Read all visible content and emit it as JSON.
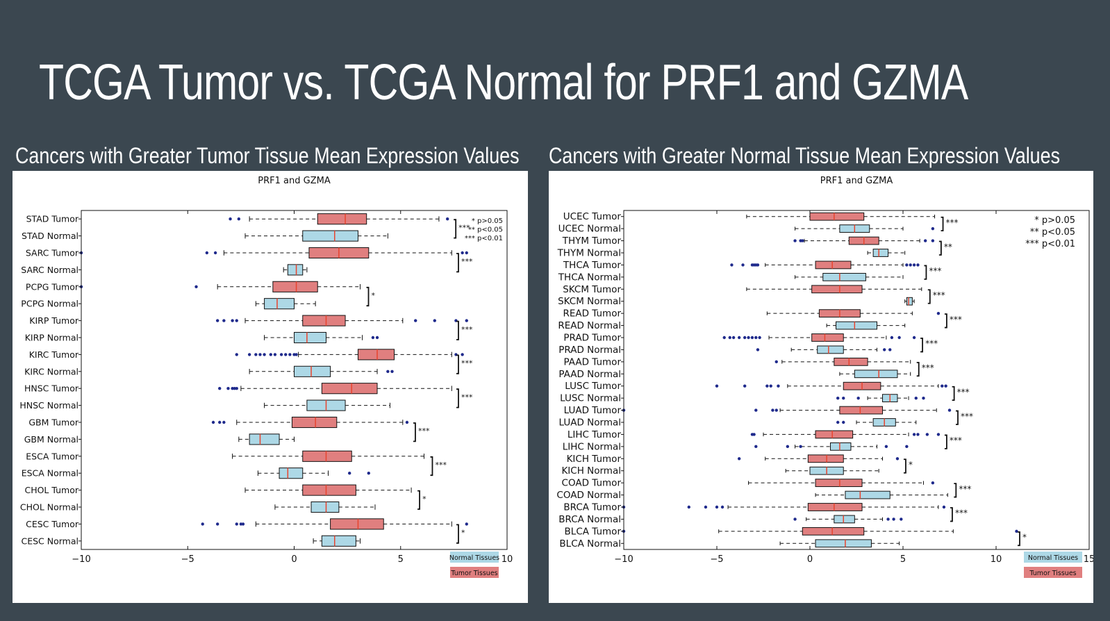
{
  "slide": {
    "title": "TCGA Tumor vs. TCGA Normal for PRF1 and GZMA",
    "left_heading": "Cancers with Greater Tumor Tissue Mean Expression Values",
    "right_heading": "Cancers with Greater Normal Tissue Mean Expression Values"
  },
  "colors": {
    "background": "#3b4750",
    "normal_box": "#add8e6",
    "tumor_box": "#e07f7f",
    "median": "#e8442e",
    "outlier": "#1f2a8c"
  },
  "chart_data": [
    {
      "type": "boxplot",
      "orientation": "horizontal",
      "title": "PRF1 and GZMA",
      "xlim": [
        -10,
        10
      ],
      "xticks": [
        -10,
        -5,
        0,
        5,
        10
      ],
      "grid": false,
      "legend": {
        "placement": "bottom-right",
        "entries": [
          "Normal Tissues",
          "Tumor Tissues"
        ]
      },
      "significance_legend": [
        "* p>0.05",
        "** p<0.05",
        "*** p<0.01"
      ],
      "categories": [
        {
          "label": "STAD Tumor",
          "type": "tumor",
          "whislo": -2.1,
          "q1": 1.1,
          "med": 2.4,
          "q3": 3.4,
          "whishi": 6.8,
          "fliers": [
            -3.0,
            -2.6,
            7.2
          ]
        },
        {
          "label": "STAD Normal",
          "type": "normal",
          "whislo": -2.3,
          "q1": 0.4,
          "med": 1.9,
          "q3": 3.0,
          "whishi": 4.4,
          "fliers": []
        },
        {
          "label": "SARC Tumor",
          "type": "tumor",
          "whislo": -3.3,
          "q1": 0.7,
          "med": 2.1,
          "q3": 3.5,
          "whishi": 7.4,
          "fliers": [
            -10.0,
            -4.1,
            -3.7,
            7.9,
            8.1
          ]
        },
        {
          "label": "SARC Normal",
          "type": "normal",
          "whislo": -0.5,
          "q1": -0.3,
          "med": 0.1,
          "q3": 0.4,
          "whishi": 0.6,
          "fliers": []
        },
        {
          "label": "PCPG Tumor",
          "type": "tumor",
          "whislo": -3.6,
          "q1": -1.0,
          "med": 0.1,
          "q3": 1.1,
          "whishi": 3.1,
          "fliers": [
            -10.0,
            -4.6
          ]
        },
        {
          "label": "PCPG Normal",
          "type": "normal",
          "whislo": -1.8,
          "q1": -1.4,
          "med": -0.8,
          "q3": 0.0,
          "whishi": 1.0,
          "fliers": []
        },
        {
          "label": "KIRP Tumor",
          "type": "tumor",
          "whislo": -2.3,
          "q1": 0.4,
          "med": 1.5,
          "q3": 2.4,
          "whishi": 5.1,
          "fliers": [
            -3.6,
            -3.3,
            -2.9,
            -2.7,
            5.7,
            6.6,
            7.6,
            8.1
          ]
        },
        {
          "label": "KIRP Normal",
          "type": "normal",
          "whislo": -1.4,
          "q1": 0.0,
          "med": 0.6,
          "q3": 1.5,
          "whishi": 3.2,
          "fliers": [
            3.7,
            3.9
          ]
        },
        {
          "label": "KIRC Tumor",
          "type": "tumor",
          "whislo": 0.2,
          "q1": 3.0,
          "med": 3.9,
          "q3": 4.7,
          "whishi": 7.4,
          "fliers": [
            -2.7,
            -2.1,
            -1.8,
            -1.6,
            -1.4,
            -1.1,
            -0.9,
            -0.6,
            -0.4,
            -0.2,
            0.0,
            0.1,
            7.6,
            7.9
          ]
        },
        {
          "label": "KIRC Normal",
          "type": "normal",
          "whislo": -2.1,
          "q1": 0.0,
          "med": 0.8,
          "q3": 1.7,
          "whishi": 3.9,
          "fliers": [
            4.4,
            4.6
          ]
        },
        {
          "label": "HNSC Tumor",
          "type": "tumor",
          "whislo": -2.5,
          "q1": 1.3,
          "med": 2.7,
          "q3": 3.9,
          "whishi": 7.4,
          "fliers": [
            -3.5,
            -3.1,
            -2.9,
            -2.8,
            -2.7
          ]
        },
        {
          "label": "HNSC Normal",
          "type": "normal",
          "whislo": -1.4,
          "q1": 0.6,
          "med": 1.5,
          "q3": 2.4,
          "whishi": 4.5,
          "fliers": []
        },
        {
          "label": "GBM Tumor",
          "type": "tumor",
          "whislo": -2.7,
          "q1": -0.1,
          "med": 1.0,
          "q3": 2.0,
          "whishi": 5.1,
          "fliers": [
            -3.8,
            -3.5,
            -3.3,
            5.3
          ]
        },
        {
          "label": "GBM Normal",
          "type": "normal",
          "whislo": -2.6,
          "q1": -2.1,
          "med": -1.6,
          "q3": -0.7,
          "whishi": 0.0,
          "fliers": []
        },
        {
          "label": "ESCA Tumor",
          "type": "tumor",
          "whislo": -2.9,
          "q1": 0.4,
          "med": 1.5,
          "q3": 2.7,
          "whishi": 6.1,
          "fliers": []
        },
        {
          "label": "ESCA Normal",
          "type": "normal",
          "whislo": -1.7,
          "q1": -0.7,
          "med": -0.3,
          "q3": 0.4,
          "whishi": 1.6,
          "fliers": [
            2.6,
            3.5
          ]
        },
        {
          "label": "CHOL Tumor",
          "type": "tumor",
          "whislo": -2.3,
          "q1": 0.4,
          "med": 1.5,
          "q3": 2.9,
          "whishi": 5.5,
          "fliers": []
        },
        {
          "label": "CHOL Normal",
          "type": "normal",
          "whislo": -0.9,
          "q1": 0.8,
          "med": 1.5,
          "q3": 2.1,
          "whishi": 3.8,
          "fliers": []
        },
        {
          "label": "CESC Tumor",
          "type": "tumor",
          "whislo": -1.8,
          "q1": 1.7,
          "med": 3.0,
          "q3": 4.2,
          "whishi": 7.4,
          "fliers": [
            -4.3,
            -3.6,
            -2.7,
            -2.5,
            -2.4,
            8.1
          ]
        },
        {
          "label": "CESC Normal",
          "type": "normal",
          "whislo": 0.9,
          "q1": 1.3,
          "med": 1.9,
          "q3": 2.9,
          "whishi": 3.1,
          "fliers": []
        }
      ],
      "brackets": [
        {
          "rows": [
            0,
            1
          ],
          "stars": "***"
        },
        {
          "rows": [
            2,
            3
          ],
          "stars": "***"
        },
        {
          "rows": [
            4,
            5
          ],
          "stars": "*"
        },
        {
          "rows": [
            6,
            7
          ],
          "stars": "***"
        },
        {
          "rows": [
            8,
            9
          ],
          "stars": "***"
        },
        {
          "rows": [
            10,
            11
          ],
          "stars": "***"
        },
        {
          "rows": [
            12,
            13
          ],
          "stars": "***"
        },
        {
          "rows": [
            14,
            15
          ],
          "stars": "***"
        },
        {
          "rows": [
            16,
            17
          ],
          "stars": "*"
        },
        {
          "rows": [
            18,
            19
          ],
          "stars": "*"
        }
      ]
    },
    {
      "type": "boxplot",
      "orientation": "horizontal",
      "title": "PRF1 and GZMA",
      "xlim": [
        -10,
        15
      ],
      "xticks": [
        -10,
        -5,
        0,
        5,
        10,
        15
      ],
      "grid": false,
      "legend": {
        "placement": "bottom-right",
        "entries": [
          "Normal Tissues",
          "Tumor Tissues"
        ]
      },
      "significance_legend": [
        "* p>0.05",
        "** p<0.05",
        "*** p<0.01"
      ],
      "categories": [
        {
          "label": "UCEC Tumor",
          "type": "tumor",
          "whislo": -3.4,
          "q1": 0.0,
          "med": 1.3,
          "q3": 2.9,
          "whishi": 6.7,
          "fliers": []
        },
        {
          "label": "UCEC Normal",
          "type": "normal",
          "whislo": -0.8,
          "q1": 1.6,
          "med": 2.4,
          "q3": 3.2,
          "whishi": 5.0,
          "fliers": [
            6.6
          ]
        },
        {
          "label": "THYM Tumor",
          "type": "tumor",
          "whislo": -0.3,
          "q1": 2.1,
          "med": 2.9,
          "q3": 3.7,
          "whishi": 5.9,
          "fliers": [
            -0.8,
            -0.5,
            -0.4,
            6.2,
            6.6
          ]
        },
        {
          "label": "THYM Normal",
          "type": "normal",
          "whislo": 3.1,
          "q1": 3.4,
          "med": 3.7,
          "q3": 4.2,
          "whishi": 5.1,
          "fliers": []
        },
        {
          "label": "THCA Tumor",
          "type": "tumor",
          "whislo": -2.4,
          "q1": 0.3,
          "med": 1.2,
          "q3": 2.2,
          "whishi": 5.0,
          "fliers": [
            -4.2,
            -3.6,
            -3.1,
            -3.0,
            -2.9,
            -2.8,
            5.2,
            5.4,
            5.6,
            5.8
          ]
        },
        {
          "label": "THCA Normal",
          "type": "normal",
          "whislo": -0.8,
          "q1": 0.7,
          "med": 1.6,
          "q3": 3.0,
          "whishi": 5.0,
          "fliers": []
        },
        {
          "label": "SKCM Tumor",
          "type": "tumor",
          "whislo": -3.4,
          "q1": 0.1,
          "med": 1.6,
          "q3": 2.8,
          "whishi": 6.0,
          "fliers": []
        },
        {
          "label": "SKCM Normal",
          "type": "normal",
          "whislo": 5.1,
          "q1": 5.2,
          "med": 5.3,
          "q3": 5.5,
          "whishi": 5.6,
          "fliers": []
        },
        {
          "label": "READ Tumor",
          "type": "tumor",
          "whislo": -2.3,
          "q1": 0.5,
          "med": 1.6,
          "q3": 2.7,
          "whishi": 5.5,
          "fliers": [
            6.9
          ]
        },
        {
          "label": "READ Normal",
          "type": "normal",
          "whislo": 0.9,
          "q1": 1.4,
          "med": 2.4,
          "q3": 3.6,
          "whishi": 5.1,
          "fliers": []
        },
        {
          "label": "PRAD Tumor",
          "type": "tumor",
          "whislo": -2.2,
          "q1": 0.1,
          "med": 0.8,
          "q3": 1.8,
          "whishi": 4.1,
          "fliers": [
            -4.6,
            -4.3,
            -4.1,
            -3.8,
            -3.5,
            -3.3,
            -3.1,
            -2.9,
            -2.7,
            4.4,
            4.8,
            5.6
          ]
        },
        {
          "label": "PRAD Normal",
          "type": "normal",
          "whislo": -1.0,
          "q1": 0.4,
          "med": 1.0,
          "q3": 1.8,
          "whishi": 3.6,
          "fliers": [
            -2.8,
            4.0,
            4.3
          ]
        },
        {
          "label": "PAAD Tumor",
          "type": "tumor",
          "whislo": -1.5,
          "q1": 1.3,
          "med": 2.1,
          "q3": 3.1,
          "whishi": 5.4,
          "fliers": [
            -1.8
          ]
        },
        {
          "label": "PAAD Normal",
          "type": "normal",
          "whislo": 1.6,
          "q1": 2.4,
          "med": 3.7,
          "q3": 4.7,
          "whishi": 5.4,
          "fliers": []
        },
        {
          "label": "LUSC Tumor",
          "type": "tumor",
          "whislo": -1.2,
          "q1": 1.8,
          "med": 2.8,
          "q3": 3.8,
          "whishi": 6.9,
          "fliers": [
            -5.0,
            -3.5,
            -2.3,
            -2.1,
            -1.7,
            7.1,
            7.3
          ]
        },
        {
          "label": "LUSC Normal",
          "type": "normal",
          "whislo": 3.1,
          "q1": 3.9,
          "med": 4.3,
          "q3": 4.7,
          "whishi": 5.3,
          "fliers": [
            1.5,
            1.8,
            2.6,
            5.7,
            6.1
          ]
        },
        {
          "label": "LUAD Tumor",
          "type": "tumor",
          "whislo": -1.6,
          "q1": 1.6,
          "med": 2.7,
          "q3": 3.9,
          "whishi": 6.8,
          "fliers": [
            -10.0,
            -2.9,
            -2.0,
            -1.8,
            7.5
          ]
        },
        {
          "label": "LUAD Normal",
          "type": "normal",
          "whislo": 2.5,
          "q1": 3.4,
          "med": 4.0,
          "q3": 4.6,
          "whishi": 5.7,
          "fliers": [
            1.5,
            1.8
          ]
        },
        {
          "label": "LIHC Tumor",
          "type": "tumor",
          "whislo": -2.5,
          "q1": 0.3,
          "med": 1.2,
          "q3": 2.3,
          "whishi": 5.3,
          "fliers": [
            -3.1,
            -3.0,
            5.6,
            5.8,
            6.3,
            6.9
          ]
        },
        {
          "label": "LIHC Normal",
          "type": "normal",
          "whislo": -0.8,
          "q1": 1.1,
          "med": 1.6,
          "q3": 2.2,
          "whishi": 3.6,
          "fliers": [
            -2.9,
            -1.2,
            -0.5,
            4.1,
            5.2
          ]
        },
        {
          "label": "KICH Tumor",
          "type": "tumor",
          "whislo": -2.4,
          "q1": -0.1,
          "med": 0.9,
          "q3": 1.8,
          "whishi": 3.9,
          "fliers": [
            -3.8,
            4.7
          ]
        },
        {
          "label": "KICH Normal",
          "type": "normal",
          "whislo": -1.3,
          "q1": 0.0,
          "med": 0.9,
          "q3": 1.8,
          "whishi": 3.7,
          "fliers": []
        },
        {
          "label": "COAD Tumor",
          "type": "tumor",
          "whislo": -3.3,
          "q1": 0.3,
          "med": 1.6,
          "q3": 2.8,
          "whishi": 6.1,
          "fliers": [
            6.6
          ]
        },
        {
          "label": "COAD Normal",
          "type": "normal",
          "whislo": 0.3,
          "q1": 1.9,
          "med": 2.7,
          "q3": 4.3,
          "whishi": 7.4,
          "fliers": []
        },
        {
          "label": "BRCA Tumor",
          "type": "tumor",
          "whislo": -4.4,
          "q1": -0.1,
          "med": 1.3,
          "q3": 2.8,
          "whishi": 6.9,
          "fliers": [
            -10.0,
            -6.5,
            -5.6,
            -5.0,
            -4.7,
            7.2
          ]
        },
        {
          "label": "BRCA Normal",
          "type": "normal",
          "whislo": -0.2,
          "q1": 1.3,
          "med": 1.8,
          "q3": 2.4,
          "whishi": 3.9,
          "fliers": [
            -0.8,
            4.2,
            4.5,
            4.9
          ]
        },
        {
          "label": "BLCA Tumor",
          "type": "tumor",
          "whislo": -4.9,
          "q1": -0.4,
          "med": 1.2,
          "q3": 2.9,
          "whishi": 7.7,
          "fliers": [
            -10.0,
            11.1
          ]
        },
        {
          "label": "BLCA Normal",
          "type": "normal",
          "whislo": -1.6,
          "q1": 0.3,
          "med": 1.9,
          "q3": 3.3,
          "whishi": 4.8,
          "fliers": []
        }
      ],
      "brackets": [
        {
          "rows": [
            0,
            1
          ],
          "stars": "***"
        },
        {
          "rows": [
            2,
            3
          ],
          "stars": "**"
        },
        {
          "rows": [
            4,
            5
          ],
          "stars": "***"
        },
        {
          "rows": [
            6,
            7
          ],
          "stars": "***"
        },
        {
          "rows": [
            8,
            9
          ],
          "stars": "***"
        },
        {
          "rows": [
            10,
            11
          ],
          "stars": "***"
        },
        {
          "rows": [
            12,
            13
          ],
          "stars": "***"
        },
        {
          "rows": [
            14,
            15
          ],
          "stars": "***"
        },
        {
          "rows": [
            16,
            17
          ],
          "stars": "***"
        },
        {
          "rows": [
            18,
            19
          ],
          "stars": "***"
        },
        {
          "rows": [
            20,
            21
          ],
          "stars": "*"
        },
        {
          "rows": [
            22,
            23
          ],
          "stars": "***"
        },
        {
          "rows": [
            24,
            25
          ],
          "stars": "***"
        },
        {
          "rows": [
            26,
            27
          ],
          "stars": "*"
        }
      ]
    }
  ]
}
